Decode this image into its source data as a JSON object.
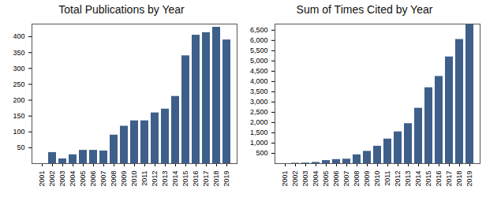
{
  "chart_data": [
    {
      "type": "bar",
      "title": "Total Publications by Year",
      "categories": [
        "2001",
        "2002",
        "2003",
        "2004",
        "2005",
        "2006",
        "2007",
        "2008",
        "2009",
        "2010",
        "2011",
        "2012",
        "2013",
        "2014",
        "2015",
        "2016",
        "2017",
        "2018",
        "2019"
      ],
      "values": [
        0,
        35,
        15,
        28,
        42,
        42,
        40,
        90,
        118,
        135,
        135,
        160,
        172,
        212,
        340,
        405,
        413,
        430,
        390
      ],
      "color": "#3e5f8a",
      "ylim": [
        0,
        440
      ],
      "yticks": [
        50,
        100,
        150,
        200,
        250,
        300,
        350,
        400
      ]
    },
    {
      "type": "bar",
      "title": "Sum of Times Cited by Year",
      "categories": [
        "2001",
        "2002",
        "2003",
        "2004",
        "2005",
        "2006",
        "2007",
        "2008",
        "2009",
        "2010",
        "2011",
        "2012",
        "2013",
        "2014",
        "2015",
        "2016",
        "2017",
        "2018",
        "2019"
      ],
      "values": [
        0,
        20,
        30,
        60,
        150,
        200,
        220,
        430,
        600,
        850,
        1200,
        1550,
        1950,
        2700,
        3700,
        4250,
        5200,
        6050,
        6800
      ],
      "color": "#3e5f8a",
      "ylim": [
        0,
        6800
      ],
      "yticks": [
        500,
        1000,
        1500,
        2000,
        2500,
        3000,
        3500,
        4000,
        4500,
        5000,
        5500,
        6000,
        6500
      ]
    }
  ]
}
